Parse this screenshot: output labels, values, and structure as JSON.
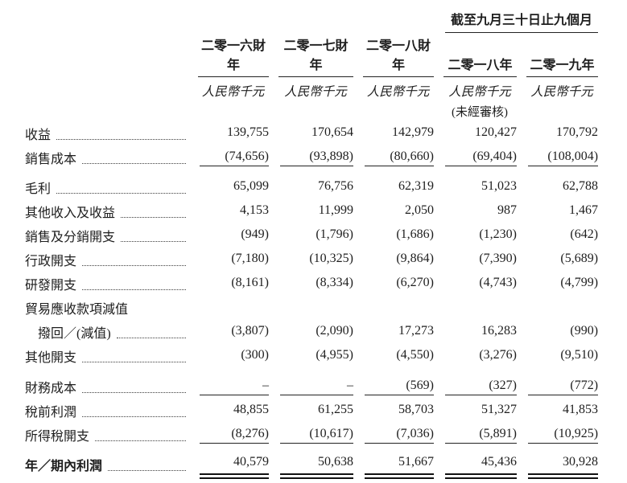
{
  "table": {
    "group_header": "截至九月三十日止九個月",
    "columns": [
      {
        "header": "二零一六財年",
        "unit": "人民幣千元"
      },
      {
        "header": "二零一七財年",
        "unit": "人民幣千元"
      },
      {
        "header": "二零一八財年",
        "unit": "人民幣千元"
      },
      {
        "header": "二零一八年",
        "unit": "人民幣千元",
        "note": "(未經審核)"
      },
      {
        "header": "二零一九年",
        "unit": "人民幣千元"
      }
    ],
    "rows": [
      {
        "label": "收益",
        "values": [
          "139,755",
          "170,654",
          "142,979",
          "120,427",
          "170,792"
        ]
      },
      {
        "label": "銷售成本",
        "values": [
          "(74,656)",
          "(93,898)",
          "(80,660)",
          "(69,404)",
          "(108,004)"
        ]
      },
      {
        "label": "毛利",
        "values": [
          "65,099",
          "76,756",
          "62,319",
          "51,023",
          "62,788"
        ]
      },
      {
        "label": "其他收入及收益",
        "values": [
          "4,153",
          "11,999",
          "2,050",
          "987",
          "1,467"
        ]
      },
      {
        "label": "銷售及分銷開支",
        "values": [
          "(949)",
          "(1,796)",
          "(1,686)",
          "(1,230)",
          "(642)"
        ]
      },
      {
        "label": "行政開支",
        "values": [
          "(7,180)",
          "(10,325)",
          "(9,864)",
          "(7,390)",
          "(5,689)"
        ]
      },
      {
        "label": "研發開支",
        "values": [
          "(8,161)",
          "(8,334)",
          "(6,270)",
          "(4,743)",
          "(4,799)"
        ]
      },
      {
        "label": "貿易應收款項減值",
        "values": [
          "",
          "",
          "",
          "",
          ""
        ]
      },
      {
        "label": "撥回／(減值)",
        "values": [
          "(3,807)",
          "(2,090)",
          "17,273",
          "16,283",
          "(990)"
        ]
      },
      {
        "label": "其他開支",
        "values": [
          "(300)",
          "(4,955)",
          "(4,550)",
          "(3,276)",
          "(9,510)"
        ]
      },
      {
        "label": "財務成本",
        "values": [
          "–",
          "–",
          "(569)",
          "(327)",
          "(772)"
        ]
      },
      {
        "label": "稅前利潤",
        "values": [
          "48,855",
          "61,255",
          "58,703",
          "51,327",
          "41,853"
        ]
      },
      {
        "label": "所得稅開支",
        "values": [
          "(8,276)",
          "(10,617)",
          "(7,036)",
          "(5,891)",
          "(10,925)"
        ]
      },
      {
        "label": "年／期內利潤",
        "values": [
          "40,579",
          "50,638",
          "51,667",
          "45,436",
          "30,928"
        ]
      }
    ]
  }
}
